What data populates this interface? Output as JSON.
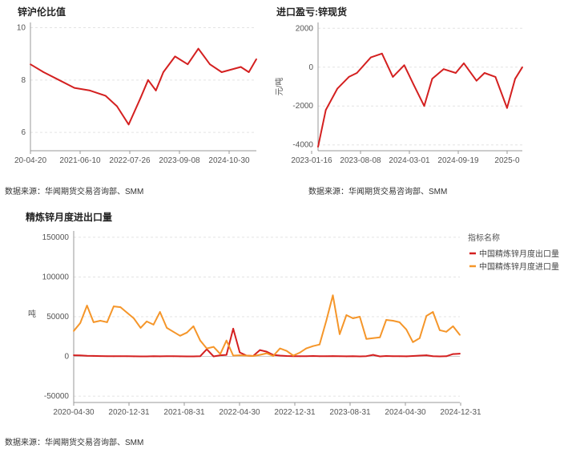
{
  "charts": {
    "zinc_ratio": {
      "title": "锌沪伦比值",
      "source": "数据来源：华闻期货交易咨询部、SMM"
    },
    "import_profit": {
      "title": "进口盈亏:锌现货",
      "source": "数据来源：华闻期货交易咨询部、SMM",
      "ylabel": "元/吨"
    },
    "trade": {
      "title": "精炼锌月度进出口量",
      "source": "数据来源：华闻期货交易咨询部、SMM",
      "ylabel": "吨",
      "legend_title": "指标名称"
    }
  },
  "colors": {
    "red": "#d42020",
    "orange": "#f5962a",
    "grid": "#e3e3e3",
    "axis": "#999999"
  },
  "chart_data": [
    {
      "type": "line",
      "title": "锌沪伦比值",
      "x_tick_labels": [
        "20-04-20",
        "2021-06-10",
        "2022-07-26",
        "2023-09-08",
        "2024-10-30"
      ],
      "x": [
        "2020-04-20",
        "2020-08-01",
        "2020-12-01",
        "2021-04-01",
        "2021-08-01",
        "2021-12-01",
        "2022-03-01",
        "2022-06-01",
        "2022-09-01",
        "2022-11-01",
        "2023-01-01",
        "2023-03-01",
        "2023-06-01",
        "2023-09-08",
        "2023-12-01",
        "2024-03-01",
        "2024-06-01",
        "2024-10-30",
        "2025-01-01",
        "2025-03-01"
      ],
      "series": [
        {
          "color": "#d42020",
          "values": [
            8.6,
            8.3,
            8.0,
            7.7,
            7.6,
            7.4,
            7.0,
            6.3,
            7.3,
            8.0,
            7.6,
            8.3,
            8.9,
            8.6,
            9.2,
            8.6,
            8.3,
            8.5,
            8.3,
            8.8
          ]
        }
      ],
      "ylim": [
        5.3,
        10.2
      ],
      "y_ticks": [
        6,
        8,
        10
      ],
      "grid": true
    },
    {
      "type": "line",
      "title": "进口盈亏:锌现货",
      "ylabel": "元/吨",
      "x_tick_labels": [
        "2023-01-16",
        "2023-08-08",
        "2024-03-01",
        "2024-09-19",
        "2025-0"
      ],
      "x": [
        "2023-01-16",
        "2023-02-15",
        "2023-04-01",
        "2023-05-15",
        "2023-06-15",
        "2023-08-08",
        "2023-09-20",
        "2023-11-01",
        "2023-12-15",
        "2024-01-20",
        "2024-03-01",
        "2024-04-01",
        "2024-05-15",
        "2024-07-01",
        "2024-08-01",
        "2024-09-19",
        "2024-10-20",
        "2024-12-01",
        "2025-01-15",
        "2025-02-15",
        "2025-03-15"
      ],
      "series": [
        {
          "color": "#d42020",
          "values": [
            -4100,
            -2200,
            -1100,
            -500,
            -300,
            500,
            700,
            -500,
            100,
            -900,
            -2000,
            -600,
            -100,
            -300,
            200,
            -700,
            -300,
            -500,
            -2100,
            -600,
            0
          ]
        }
      ],
      "ylim": [
        -4300,
        2300
      ],
      "y_ticks": [
        -4000,
        -2000,
        0,
        2000
      ],
      "grid": true
    },
    {
      "type": "line",
      "title": "精炼锌月度进出口量",
      "ylabel": "吨",
      "legend_position": "right",
      "x_tick_labels": [
        "2020-04-30",
        "2020-12-31",
        "2021-08-31",
        "2022-04-30",
        "2022-12-31",
        "2023-08-31",
        "2024-04-30",
        "2024-12-31"
      ],
      "x": [
        "2020-04",
        "2020-05",
        "2020-06",
        "2020-07",
        "2020-08",
        "2020-09",
        "2020-10",
        "2020-11",
        "2020-12",
        "2021-01",
        "2021-02",
        "2021-03",
        "2021-04",
        "2021-05",
        "2021-06",
        "2021-07",
        "2021-08",
        "2021-09",
        "2021-10",
        "2021-11",
        "2021-12",
        "2022-01",
        "2022-02",
        "2022-03",
        "2022-04",
        "2022-05",
        "2022-06",
        "2022-07",
        "2022-08",
        "2022-09",
        "2022-10",
        "2022-11",
        "2022-12",
        "2023-01",
        "2023-02",
        "2023-03",
        "2023-04",
        "2023-05",
        "2023-06",
        "2023-07",
        "2023-08",
        "2023-09",
        "2023-10",
        "2023-11",
        "2023-12",
        "2024-01",
        "2024-02",
        "2024-03",
        "2024-04",
        "2024-05",
        "2024-06",
        "2024-07",
        "2024-08",
        "2024-09",
        "2024-10",
        "2024-11",
        "2024-12",
        "2025-01",
        "2025-02"
      ],
      "series": [
        {
          "name": "中国精炼锌月度出口量",
          "color": "#d42020",
          "values": [
            1500,
            1200,
            800,
            600,
            400,
            300,
            200,
            300,
            200,
            100,
            0,
            0,
            200,
            100,
            300,
            200,
            100,
            0,
            0,
            200,
            9000,
            0,
            1500,
            2000,
            35000,
            5000,
            1000,
            500,
            8000,
            6000,
            2000,
            1000,
            500,
            300,
            200,
            300,
            500,
            200,
            300,
            400,
            200,
            100,
            300,
            0,
            300,
            2000,
            0,
            500,
            300,
            200,
            100,
            500,
            1000,
            1500,
            300,
            0,
            200,
            3000,
            3500
          ]
        },
        {
          "name": "中国精炼锌月度进口量",
          "color": "#f5962a",
          "values": [
            32000,
            42000,
            64000,
            43000,
            45000,
            43000,
            63000,
            62000,
            55000,
            48000,
            36000,
            44000,
            40000,
            56000,
            36000,
            31000,
            26000,
            30000,
            38000,
            20000,
            10000,
            12000,
            3000,
            20000,
            1000,
            1500,
            1000,
            500,
            2000,
            4000,
            500,
            10000,
            7000,
            1000,
            5000,
            10000,
            13000,
            15000,
            45000,
            77000,
            28000,
            52000,
            48000,
            50000,
            22000,
            23000,
            24000,
            46000,
            45000,
            43000,
            34000,
            18000,
            23000,
            51000,
            56000,
            33000,
            31000,
            38000,
            27000
          ]
        }
      ],
      "ylim": [
        -58000,
        158000
      ],
      "y_ticks": [
        -50000,
        0,
        50000,
        100000,
        150000
      ],
      "grid": true
    }
  ]
}
